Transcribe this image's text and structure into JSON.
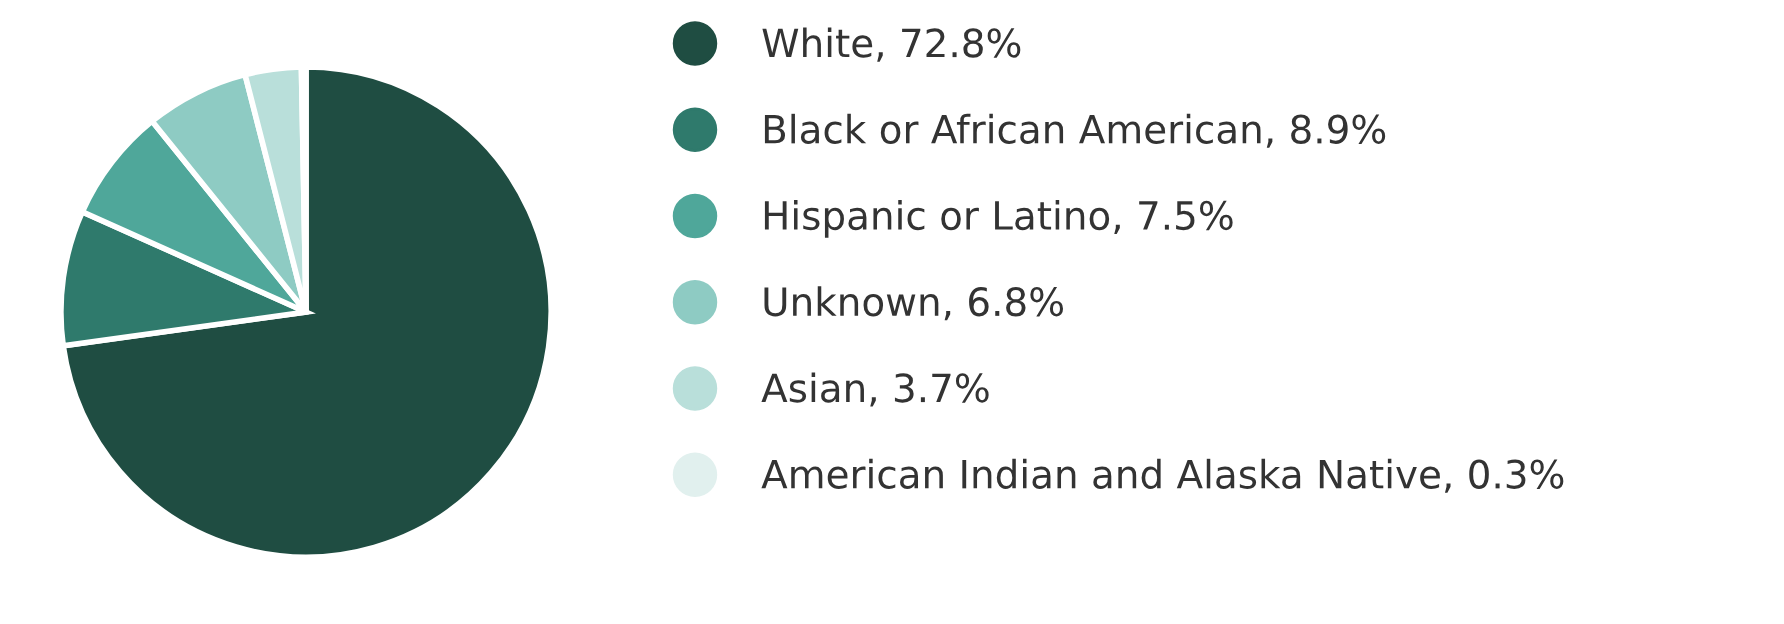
{
  "chart_data": {
    "type": "pie",
    "categories": [
      "White, 72.8%",
      "Black or African American, 8.9%",
      "Hispanic or Latino, 7.5%",
      "Unknown, 6.8%",
      "Asian, 3.7%",
      "American Indian and Alaska Native, 0.3%"
    ],
    "values": [
      72.8,
      8.9,
      7.5,
      6.8,
      3.7,
      0.3
    ],
    "colors": [
      "#1f4d42",
      "#2f7a6c",
      "#4fa79a",
      "#8ecbc3",
      "#b9dfda",
      "#e1f0ee"
    ],
    "legend": "right"
  }
}
